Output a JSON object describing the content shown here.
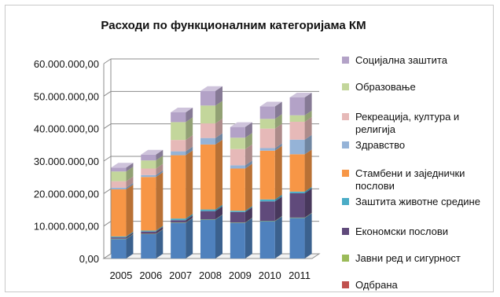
{
  "chart_data": {
    "type": "bar",
    "stacked": true,
    "three_d": true,
    "title": "Расходи по функционалним категоријама КМ",
    "xlabel": "",
    "ylabel": "",
    "categories": [
      "2005",
      "2006",
      "2007",
      "2008",
      "2009",
      "2010",
      "2011"
    ],
    "ylim": [
      0,
      60000000
    ],
    "yticks": [
      0,
      10000000,
      20000000,
      30000000,
      40000000,
      50000000,
      60000000
    ],
    "ytick_labels": [
      "0,00",
      "10.000.000,00",
      "20.000.000,00",
      "30.000.000,00",
      "40.000.000,00",
      "50.000.000,00",
      "60.000.000,00"
    ],
    "legend_position": "right",
    "grid": true,
    "series": [
      {
        "name": "Одбрана",
        "color": "#c0504d",
        "values": [
          0,
          0,
          0,
          0,
          0,
          0,
          0
        ]
      },
      {
        "name": "Јавни ред и сигурност",
        "color": "#9bbb59",
        "values": [
          100000,
          100000,
          100000,
          100000,
          100000,
          100000,
          100000
        ]
      },
      {
        "name": "Економски послови",
        "color": "#604a7b",
        "values": [
          400000,
          700000,
          700000,
          2500000,
          3200000,
          6000000,
          7500000
        ]
      },
      {
        "name": "Заштита животне средине",
        "color": "#4bacc6",
        "values": [
          300000,
          300000,
          500000,
          500000,
          400000,
          600000,
          500000
        ]
      },
      {
        "name": "Стамбени и заједнички послови",
        "color": "#f79646",
        "values": [
          14500000,
          16500000,
          19500000,
          20000000,
          13000000,
          15000000,
          11500000
        ]
      },
      {
        "name": "Здравство",
        "color": "#95b3d7",
        "values": [
          500000,
          600000,
          1200000,
          2000000,
          1000000,
          800000,
          4500000
        ]
      },
      {
        "name": "Рекреација, култура и религија",
        "color": "#e6b9b8",
        "values": [
          2000000,
          2000000,
          3500000,
          4500000,
          5000000,
          6000000,
          5500000
        ]
      },
      {
        "name": "Образовање",
        "color": "#c3d69b",
        "values": [
          3000000,
          2500000,
          5500000,
          5500000,
          3500000,
          3000000,
          2000000
        ]
      },
      {
        "name": "Социјална заштита",
        "color": "#b3a2c7",
        "values": [
          1200000,
          1800000,
          3000000,
          4500000,
          3300000,
          3800000,
          5500000
        ]
      }
    ],
    "base_values": [
      6000000,
      7500000,
      11000000,
      12000000,
      11000000,
      11500000,
      12500000
    ],
    "base_color": "#4f81bd"
  }
}
